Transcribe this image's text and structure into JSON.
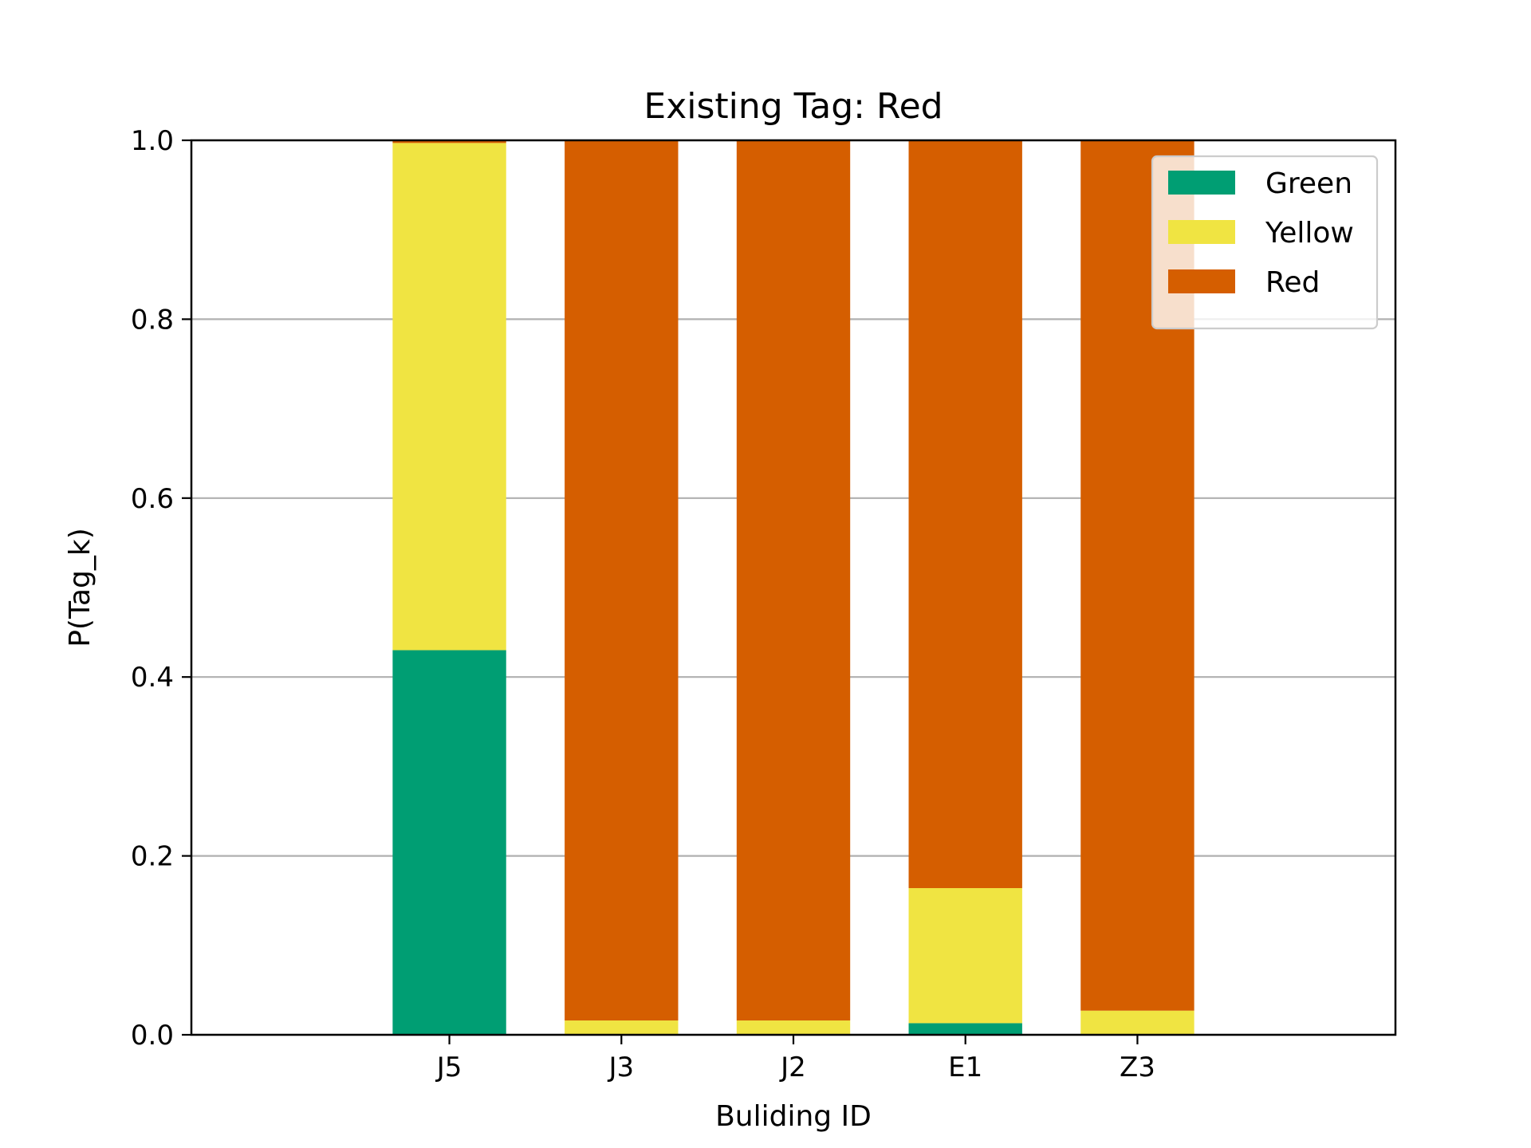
{
  "chart_data": {
    "type": "bar",
    "stacked": true,
    "title": "Existing Tag: Red",
    "xlabel": "Buliding ID",
    "ylabel": "P(Tag_k)",
    "categories": [
      "J5",
      "J3",
      "J2",
      "E1",
      "Z3"
    ],
    "series": [
      {
        "name": "Green",
        "color": "#009e73",
        "values": [
          0.43,
          0.0,
          0.0,
          0.013,
          0.0
        ]
      },
      {
        "name": "Yellow",
        "color": "#f0e442",
        "values": [
          0.567,
          0.016,
          0.016,
          0.151,
          0.027
        ]
      },
      {
        "name": "Red",
        "color": "#d55e00",
        "values": [
          0.003,
          0.984,
          0.984,
          0.836,
          0.973
        ]
      }
    ],
    "ylim": [
      0,
      1.0
    ],
    "yticks": [
      0.0,
      0.2,
      0.4,
      0.6,
      0.8,
      1.0
    ],
    "ytick_labels": [
      "0.0",
      "0.2",
      "0.4",
      "0.6",
      "0.8",
      "1.0"
    ],
    "grid": "horizontal",
    "legend_position": "top-right"
  }
}
